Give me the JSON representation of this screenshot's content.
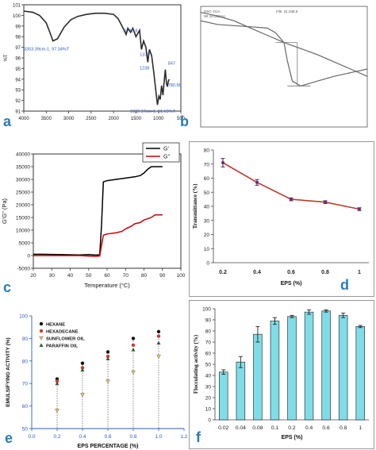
{
  "colors": {
    "panel_letter": "#2a7bb8",
    "ftir_line": "#2b2b2b",
    "tga_line": "#666666",
    "rheo_gp": "#000000",
    "rheo_gpp": "#cc0000",
    "transmittance": "#c0392b",
    "bars": "#7fdde8",
    "emuls_axis": "#2a5dbb"
  },
  "panels": {
    "a": {
      "letter": "a"
    },
    "b": {
      "letter": "b"
    },
    "c": {
      "letter": "c"
    },
    "d": {
      "letter": "d"
    },
    "e": {
      "letter": "e"
    },
    "f": {
      "letter": "f"
    }
  },
  "chart_data": [
    {
      "id": "a",
      "type": "line",
      "ylabel": "%T",
      "xlim": [
        4000,
        500
      ],
      "ylim": [
        91,
        101
      ],
      "xticks": [
        "4000",
        "3500",
        "3000",
        "2500",
        "2000",
        "1500",
        "1000",
        "500"
      ],
      "yticks": [
        "101",
        "100",
        "99",
        "98",
        "97",
        "96",
        "95",
        "94",
        "93",
        "92",
        "91"
      ],
      "x": [
        4000,
        3800,
        3650,
        3500,
        3400,
        3350,
        3250,
        3100,
        2950,
        2800,
        2600,
        2400,
        2200,
        2000,
        1900,
        1800,
        1719,
        1680,
        1620,
        1570,
        1500,
        1420,
        1378,
        1330,
        1280,
        1238,
        1200,
        1150,
        1100,
        1050,
        1022,
        990,
        960,
        930,
        900,
        870,
        847,
        820,
        800,
        780,
        760
      ],
      "y": [
        100.4,
        100.3,
        100.0,
        99.3,
        98.2,
        97.6,
        97.8,
        98.9,
        99.6,
        99.9,
        100.1,
        100.2,
        100.2,
        100.1,
        99.7,
        98.9,
        98.2,
        98.8,
        98.4,
        98.8,
        98.0,
        98.6,
        96.8,
        97.6,
        97.0,
        95.6,
        96.8,
        96.2,
        94.5,
        92.6,
        91.6,
        92.4,
        92.1,
        93.4,
        92.5,
        93.9,
        94.9,
        93.6,
        93.3,
        93.8,
        94.0
      ],
      "annotations": [
        {
          "text": "3353.39cm-1, 97.34%T",
          "x": 3353,
          "y": 97.6
        },
        {
          "text": "1718.8",
          "x": 1719,
          "y": 98.2
        },
        {
          "text": "1378",
          "x": 1378,
          "y": 96.8
        },
        {
          "text": "1238",
          "x": 1238,
          "y": 95.6
        },
        {
          "text": "847",
          "x": 847,
          "y": 94.9
        },
        {
          "text": "780.98",
          "x": 781,
          "y": 93.3
        },
        {
          "text": "1022.97cm-1, 91.69%T",
          "x": 1022,
          "y": 91.6
        }
      ]
    },
    {
      "id": "b",
      "type": "line",
      "header_left": [
        "DSC-TGA",
        "Wt 10.000mg"
      ],
      "header_right": "File: 01.038.5",
      "tga_x": [
        0,
        0.1,
        0.2,
        0.3,
        0.4,
        0.5,
        0.6,
        0.7,
        0.8,
        0.9,
        1.0
      ],
      "tga_y": [
        0.05,
        0.08,
        0.12,
        0.18,
        0.24,
        0.3,
        0.35,
        0.4,
        0.46,
        0.52,
        0.58
      ],
      "dsc_x": [
        0,
        0.1,
        0.2,
        0.3,
        0.4,
        0.45,
        0.5,
        0.52,
        0.55,
        0.6,
        0.65,
        0.7,
        0.8,
        0.9,
        1.0
      ],
      "dsc_y": [
        0.12,
        0.15,
        0.16,
        0.17,
        0.18,
        0.22,
        0.3,
        0.45,
        0.62,
        0.66,
        0.64,
        0.62,
        0.58,
        0.55,
        0.52
      ]
    },
    {
      "id": "c",
      "type": "line",
      "xlabel": "Temperature (°C)",
      "ylabel": "G'G\" (Pa)",
      "xlim": [
        20,
        100
      ],
      "ylim": [
        -5000,
        40000
      ],
      "xticks": [
        20,
        30,
        40,
        50,
        60,
        70,
        80,
        90,
        100
      ],
      "yticks": [
        -5000,
        0,
        5000,
        10000,
        15000,
        20000,
        25000,
        30000,
        35000,
        40000
      ],
      "series": [
        {
          "name": "G'",
          "x": [
            20,
            25,
            30,
            35,
            40,
            45,
            50,
            54,
            56,
            57,
            58,
            60,
            65,
            70,
            75,
            78,
            80,
            82,
            84,
            86,
            88,
            90
          ],
          "y": [
            500,
            500,
            450,
            400,
            300,
            250,
            400,
            200,
            300,
            12000,
            29000,
            29500,
            30000,
            30500,
            31000,
            31500,
            32500,
            34000,
            35000,
            35000,
            35000,
            35000
          ]
        },
        {
          "name": "G\"",
          "x": [
            20,
            25,
            30,
            35,
            40,
            45,
            50,
            54,
            56,
            57,
            58,
            60,
            65,
            68,
            70,
            73,
            75,
            78,
            80,
            82,
            84,
            86,
            88,
            90
          ],
          "y": [
            0,
            0,
            0,
            0,
            0,
            0,
            -200,
            -300,
            -200,
            4000,
            8000,
            8500,
            9000,
            9500,
            10500,
            11500,
            12500,
            13000,
            14000,
            14500,
            15000,
            16000,
            16000,
            16000
          ]
        }
      ]
    },
    {
      "id": "d",
      "type": "line",
      "xlabel": "EPS (%)",
      "ylabel": "Transmittance (%)",
      "categories": [
        "0.2",
        "0.4",
        "0.6",
        "0.8",
        "1"
      ],
      "ylim": [
        0,
        80
      ],
      "yticks": [
        0,
        10,
        20,
        30,
        40,
        50,
        60,
        70,
        80
      ],
      "values": [
        71,
        57,
        45,
        43,
        38
      ],
      "errors": [
        3,
        2,
        1,
        1,
        1
      ]
    },
    {
      "id": "e",
      "type": "scatter",
      "xlabel": "EPS PERCENTAGE (%)",
      "ylabel": "EMULSIFYING ACTIVITY (%)",
      "xlim": [
        0,
        1.2
      ],
      "ylim": [
        50,
        100
      ],
      "xticks": [
        "0.0",
        "0.2",
        "0.4",
        "0.6",
        "0.8",
        "1.0",
        "1.2"
      ],
      "yticks": [
        50,
        60,
        70,
        80,
        90,
        100
      ],
      "x": [
        0.2,
        0.4,
        0.6,
        0.8,
        1.0
      ],
      "series": [
        {
          "name": "HEXANE",
          "values": [
            72,
            79,
            84,
            90,
            93
          ]
        },
        {
          "name": "HEXADECANE",
          "values": [
            71,
            77,
            82,
            87,
            91
          ]
        },
        {
          "name": "SUNFLOWER OIL",
          "values": [
            58,
            65,
            71,
            75,
            82
          ]
        },
        {
          "name": "PARAFFIN OIL",
          "values": [
            70,
            76,
            81,
            85,
            88
          ]
        }
      ]
    },
    {
      "id": "f",
      "type": "bar",
      "xlabel": "EPS (%)",
      "ylabel": "Flocculating activity (%)",
      "categories": [
        "0.02",
        "0.04",
        "0.08",
        "0.1",
        "0.2",
        "0.4",
        "0.6",
        "0.8",
        "1"
      ],
      "values": [
        43,
        52,
        77,
        89,
        93,
        97,
        98,
        94,
        84
      ],
      "errors": [
        2,
        5,
        7,
        3,
        1,
        2,
        1,
        2,
        1
      ],
      "ylim": [
        0,
        100
      ],
      "yticks": [
        0,
        10,
        20,
        30,
        40,
        50,
        60,
        70,
        80,
        90,
        100
      ]
    }
  ]
}
